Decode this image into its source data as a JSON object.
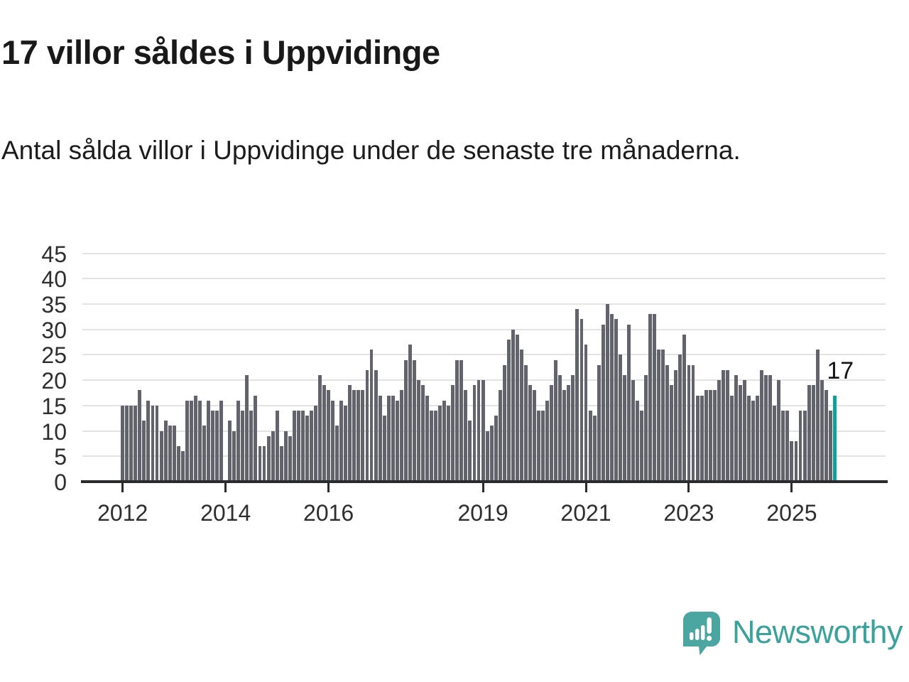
{
  "title": "17 villor såldes i Uppvidinge",
  "subtitle": "Antal sålda villor i Uppvidinge under de senaste tre månaderna.",
  "annotation": {
    "label": "17"
  },
  "logo": {
    "text": "Newsworthy"
  },
  "colors": {
    "bar": "#63636d",
    "highlight": "#0aa39b",
    "gridline": "#e3e3e3",
    "axis": "#2b2b2e",
    "text": "#1c1c1c",
    "logo_teal": "#3aa29b",
    "logo_mark": "#4ba5a0"
  },
  "chart_data": {
    "type": "bar",
    "title": "17 villor såldes i Uppvidinge",
    "subtitle": "Antal sålda villor i Uppvidinge under de senaste tre månaderna.",
    "x_unit": "month",
    "x_start": "2012-01",
    "values": [
      15,
      15,
      15,
      15,
      18,
      12,
      16,
      15,
      15,
      10,
      12,
      11,
      11,
      7,
      6,
      16,
      16,
      17,
      16,
      11,
      16,
      14,
      14,
      16,
      0,
      12,
      10,
      16,
      14,
      21,
      14,
      17,
      7,
      7,
      9,
      10,
      14,
      7,
      10,
      9,
      14,
      14,
      14,
      13,
      14,
      15,
      21,
      19,
      18,
      16,
      11,
      16,
      15,
      19,
      18,
      18,
      18,
      22,
      26,
      22,
      17,
      13,
      17,
      17,
      16,
      18,
      24,
      27,
      24,
      20,
      19,
      17,
      14,
      14,
      15,
      16,
      15,
      19,
      24,
      24,
      18,
      12,
      19,
      20,
      20,
      10,
      11,
      13,
      18,
      23,
      28,
      30,
      29,
      26,
      23,
      19,
      18,
      14,
      14,
      16,
      19,
      24,
      21,
      18,
      19,
      21,
      34,
      32,
      27,
      14,
      13,
      23,
      31,
      35,
      33,
      32,
      25,
      21,
      31,
      20,
      16,
      14,
      21,
      33,
      33,
      26,
      26,
      23,
      19,
      22,
      25,
      29,
      23,
      23,
      17,
      17,
      18,
      18,
      18,
      20,
      22,
      22,
      17,
      21,
      19,
      20,
      17,
      16,
      17,
      22,
      21,
      21,
      15,
      20,
      14,
      14,
      8,
      8,
      14,
      14,
      19,
      19,
      26,
      20,
      18,
      14,
      17
    ],
    "x_ticks": [
      {
        "index": 0,
        "label": "2012"
      },
      {
        "index": 24,
        "label": "2014"
      },
      {
        "index": 48,
        "label": "2016"
      },
      {
        "index": 84,
        "label": "2019"
      },
      {
        "index": 108,
        "label": "2021"
      },
      {
        "index": 132,
        "label": "2023"
      },
      {
        "index": 156,
        "label": "2025"
      }
    ],
    "y_ticks": [
      0,
      5,
      10,
      15,
      20,
      25,
      30,
      35,
      40,
      45
    ],
    "ylim": [
      0,
      45
    ],
    "grid": true,
    "legend": false,
    "highlight_index": 166,
    "highlight_label": "17"
  }
}
